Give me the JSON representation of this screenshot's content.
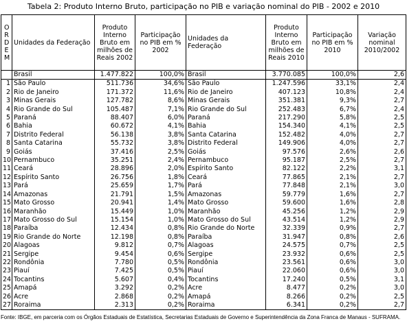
{
  "title": "Tabela 2: Produto Interno Bruto, participação no PIB e variação nominal do PIB - 2002 e 2010",
  "table": {
    "header": [
      "ORDEM",
      "Unidades da Federação",
      "Produto Interno Bruto em milhões de Reais 2002",
      "Participação no PIB em % 2002",
      "Unidades da Federação",
      "Produto Interno Bruto em milhões de Reais 2010",
      "Participação no PIB em % 2010",
      "Variação nominal 2010/2002"
    ],
    "total": [
      "Brasil",
      "1.477.822",
      "100,0%",
      "Brasil",
      "3.770.085",
      "100,0%",
      "2,6"
    ],
    "rows": [
      [
        "1",
        "São Paulo",
        "511.736",
        "34,6%",
        "São Paulo",
        "1.247.596",
        "33,1%",
        "2,4"
      ],
      [
        "2",
        "Rio de Janeiro",
        "171.372",
        "11,6%",
        "Rio de Janeiro",
        "407.123",
        "10,8%",
        "2,4"
      ],
      [
        "3",
        "Minas Gerais",
        "127.782",
        "8,6%",
        "Minas Gerais",
        "351.381",
        "9,3%",
        "2,7"
      ],
      [
        "4",
        "Rio Grande do Sul",
        "105.487",
        "7,1%",
        "Rio Grande do Sul",
        "252.483",
        "6,7%",
        "2,4"
      ],
      [
        "5",
        "Paraná",
        "88.407",
        "6,0%",
        "Paraná",
        "217.290",
        "5,8%",
        "2,5"
      ],
      [
        "6",
        "Bahia",
        "60.672",
        "4,1%",
        "Bahia",
        "154.340",
        "4,1%",
        "2,5"
      ],
      [
        "7",
        "Distrito Federal",
        "56.138",
        "3,8%",
        "Santa Catarina",
        "152.482",
        "4,0%",
        "2,7"
      ],
      [
        "8",
        "Santa Catarina",
        "55.732",
        "3,8%",
        "Distrito Federal",
        "149.906",
        "4,0%",
        "2,7"
      ],
      [
        "9",
        "Goiás",
        "37.416",
        "2,5%",
        "Goiás",
        "97.576",
        "2,6%",
        "2,6"
      ],
      [
        "10",
        "Pernambuco",
        "35.251",
        "2,4%",
        "Pernambuco",
        "95.187",
        "2,5%",
        "2,7"
      ],
      [
        "11",
        "Ceará",
        "28.896",
        "2,0%",
        "Espírito Santo",
        "82.122",
        "2,2%",
        "3,1"
      ],
      [
        "12",
        "Espírito Santo",
        "26.756",
        "1,8%",
        "Ceará",
        "77.865",
        "2,1%",
        "2,7"
      ],
      [
        "13",
        "Pará",
        "25.659",
        "1,7%",
        "Pará",
        "77.848",
        "2,1%",
        "3,0"
      ],
      [
        "14",
        "Amazonas",
        "21.791",
        "1,5%",
        "Amazonas",
        "59.779",
        "1,6%",
        "2,7"
      ],
      [
        "15",
        "Mato Grosso",
        "20.941",
        "1,4%",
        "Mato Grosso",
        "59.600",
        "1,6%",
        "2,8"
      ],
      [
        "16",
        "Maranhão",
        "15.449",
        "1,0%",
        "Maranhão",
        "45.256",
        "1,2%",
        "2,9"
      ],
      [
        "17",
        "Mato Grosso do Sul",
        "15.154",
        "1,0%",
        "Mato Grosso do Sul",
        "43.514",
        "1,2%",
        "2,9"
      ],
      [
        "18",
        "Paraíba",
        "12.434",
        "0,8%",
        "Rio Grande do Norte",
        "32.339",
        "0,9%",
        "2,7"
      ],
      [
        "19",
        "Rio Grande do Norte",
        "12.198",
        "0,8%",
        "Paraíba",
        "31.947",
        "0,8%",
        "2,6"
      ],
      [
        "20",
        "Alagoas",
        "9.812",
        "0,7%",
        "Alagoas",
        "24.575",
        "0,7%",
        "2,5"
      ],
      [
        "21",
        "Sergipe",
        "9.454",
        "0,6%",
        "Sergipe",
        "23.932",
        "0,6%",
        "2,5"
      ],
      [
        "22",
        "Rondônia",
        "7.780",
        "0,5%",
        "Rondônia",
        "23.561",
        "0,6%",
        "3,0"
      ],
      [
        "23",
        "Piauí",
        "7.425",
        "0,5%",
        "Piauí",
        "22.060",
        "0,6%",
        "3,0"
      ],
      [
        "24",
        "Tocantins",
        "5.607",
        "0,4%",
        "Tocantins",
        "17.240",
        "0,5%",
        "3,1"
      ],
      [
        "25",
        "Amapá",
        "3.292",
        "0,2%",
        "Acre",
        "8.477",
        "0,2%",
        "3,0"
      ],
      [
        "26",
        "Acre",
        "2.868",
        "0,2%",
        "Amapá",
        "8.266",
        "0,2%",
        "2,5"
      ],
      [
        "27",
        "Roraima",
        "2.313",
        "0,2%",
        "Roraima",
        "6.341",
        "0,2%",
        "2,7"
      ]
    ]
  },
  "footer": "Fonte: IBGE, em parceria com os Órgãos Estaduais de Estatística, Secretarias Estaduais de Governo e Superintendência da Zona Franca de Manaus - SUFRAMA."
}
